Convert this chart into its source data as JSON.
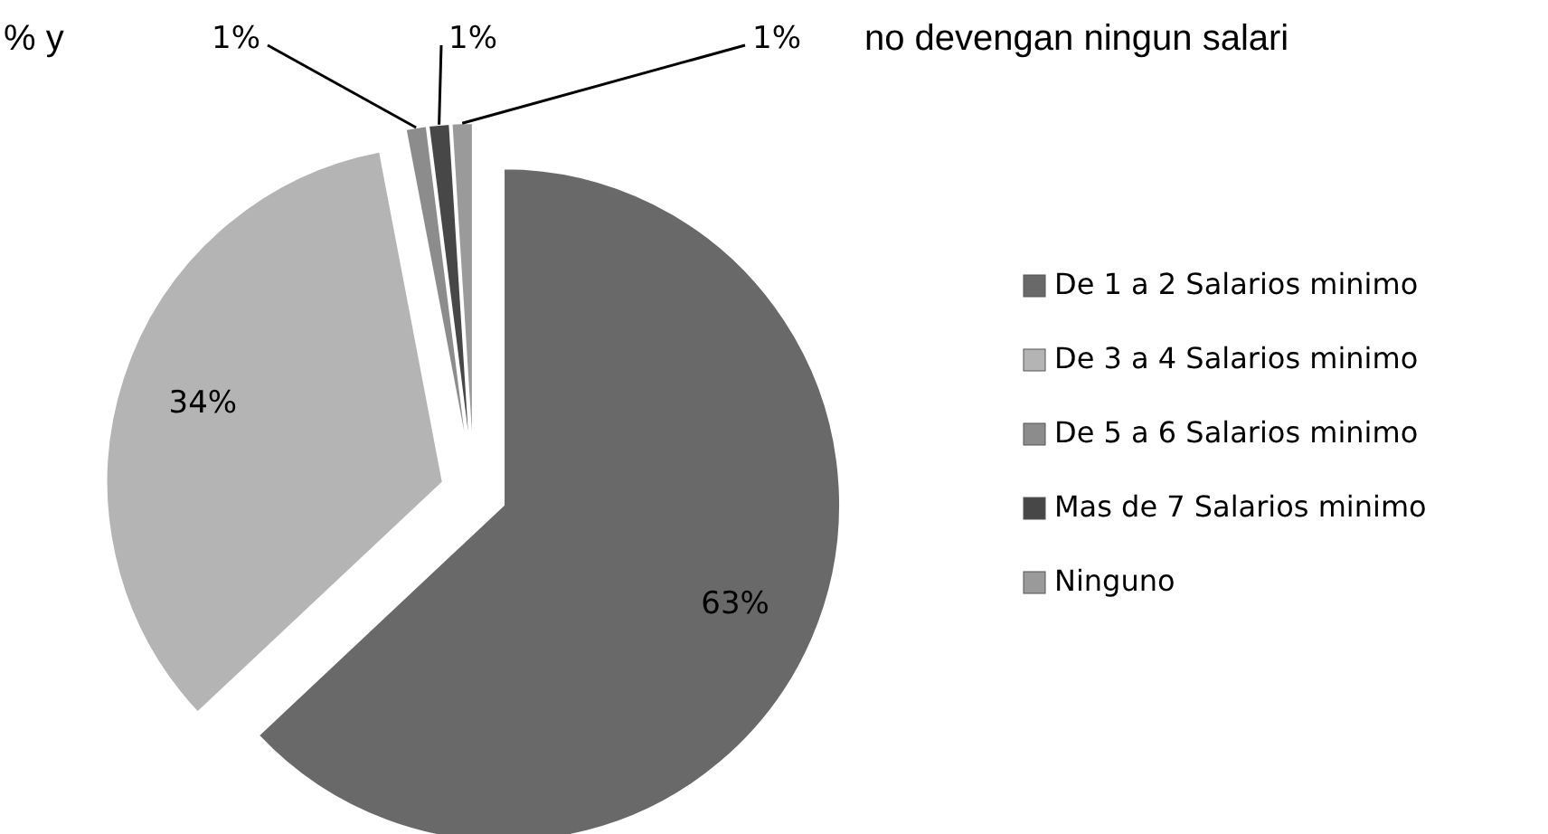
{
  "chart_data": {
    "type": "pie",
    "categories": [
      "De 1 a 2 Salarios minimo",
      "De 3 a 4 Salarios minimo",
      "De 5 a 6 Salarios minimo",
      "Mas de 7 Salarios minimo",
      "Ninguno"
    ],
    "values": [
      63,
      34,
      1,
      1,
      1
    ],
    "colors": [
      "#696969",
      "#b4b4b4",
      "#8c8c8c",
      "#474747",
      "#9a9a9a"
    ],
    "value_labels": [
      "63%",
      "34%",
      "1%",
      "1%",
      "1%"
    ],
    "legend": "right",
    "annotations": [
      "% y",
      "no devengan ningun salari"
    ]
  }
}
